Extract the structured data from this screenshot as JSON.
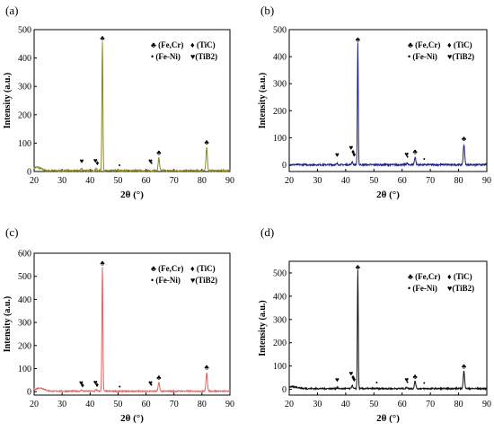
{
  "chart_data": [
    {
      "type": "line",
      "panel_label": "(a)",
      "color": "#8a8a1e",
      "xlabel": "2θ (°)",
      "ylabel": "Intensity (a.u.)",
      "xlim": [
        20,
        90
      ],
      "ylim": [
        0,
        500
      ],
      "xticks": [
        "20",
        "30",
        "40",
        "50",
        "60",
        "70",
        "80",
        "90"
      ],
      "yticks": [
        "0",
        "100",
        "200",
        "300",
        "400",
        "500"
      ],
      "legend": {
        "placement": "top-right",
        "items": [
          "♣ (Fe,Cr)",
          "♦ (TiC)",
          "• (Fe-Ni)",
          "♥(TiB2)"
        ]
      },
      "baseline": 3,
      "noise": 3,
      "hump": {
        "center": 21,
        "width": 2,
        "height": 12
      },
      "peaks": [
        {
          "x": 44.4,
          "y": 455,
          "w": 0.25
        },
        {
          "x": 64.6,
          "y": 45,
          "w": 0.35
        },
        {
          "x": 81.7,
          "y": 82,
          "w": 0.35
        },
        {
          "x": 37.0,
          "y": 6,
          "w": 0.3
        },
        {
          "x": 42.2,
          "y": 7,
          "w": 0.3
        }
      ],
      "markers": [
        {
          "x": 37.0,
          "y": 28,
          "symbol": "♥"
        },
        {
          "x": 41.9,
          "y": 30,
          "symbol": "♥"
        },
        {
          "x": 42.6,
          "y": 22,
          "symbol": "♦"
        },
        {
          "x": 44.4,
          "y": 462,
          "symbol": "♣"
        },
        {
          "x": 50.5,
          "y": 12,
          "symbol": "•"
        },
        {
          "x": 61.6,
          "y": 28,
          "symbol": "♥"
        },
        {
          "x": 62.0,
          "y": 20,
          "symbol": "•"
        },
        {
          "x": 64.6,
          "y": 58,
          "symbol": "♣"
        },
        {
          "x": 81.7,
          "y": 95,
          "symbol": "♣"
        }
      ]
    },
    {
      "type": "line",
      "panel_label": "(b)",
      "color": "#1a1f8c",
      "xlabel": "2θ (°)",
      "ylabel": "Intensity (a.u.)",
      "xlim": [
        20,
        90
      ],
      "ylim": [
        -25,
        500
      ],
      "xticks": [
        "20",
        "30",
        "40",
        "50",
        "60",
        "70",
        "80",
        "90"
      ],
      "yticks": [
        "0",
        "100",
        "200",
        "300",
        "400",
        "500"
      ],
      "legend": {
        "placement": "top-right",
        "items": [
          "♣ (Fe,Cr)",
          "♦ (TiC)",
          "• (Fe-Ni)",
          "♥(TiB2)"
        ]
      },
      "baseline": 0,
      "noise": 3,
      "peaks": [
        {
          "x": 44.3,
          "y": 450,
          "w": 0.22
        },
        {
          "x": 64.6,
          "y": 28,
          "w": 0.35
        },
        {
          "x": 81.9,
          "y": 75,
          "w": 0.35
        },
        {
          "x": 37.0,
          "y": 4,
          "w": 0.3
        },
        {
          "x": 42.3,
          "y": 12,
          "w": 0.3
        },
        {
          "x": 61.7,
          "y": 6,
          "w": 0.3
        }
      ],
      "markers": [
        {
          "x": 37.0,
          "y": 28,
          "symbol": "♥"
        },
        {
          "x": 41.9,
          "y": 55,
          "symbol": "♥"
        },
        {
          "x": 42.6,
          "y": 40,
          "symbol": "♦"
        },
        {
          "x": 43.0,
          "y": 30,
          "symbol": "♦"
        },
        {
          "x": 44.3,
          "y": 455,
          "symbol": "♣"
        },
        {
          "x": 61.6,
          "y": 30,
          "symbol": "♥"
        },
        {
          "x": 61.9,
          "y": 20,
          "symbol": "•"
        },
        {
          "x": 64.6,
          "y": 40,
          "symbol": "♣"
        },
        {
          "x": 67.8,
          "y": 12,
          "symbol": "•"
        },
        {
          "x": 81.9,
          "y": 88,
          "symbol": "♣"
        }
      ]
    },
    {
      "type": "line",
      "panel_label": "(c)",
      "color": "#e8605e",
      "xlabel": "2θ (°)",
      "ylabel": "Intensity (a.u.)",
      "xlim": [
        20,
        90
      ],
      "ylim": [
        -15,
        600
      ],
      "xticks": [
        "20",
        "30",
        "40",
        "50",
        "60",
        "70",
        "80",
        "90"
      ],
      "yticks": [
        "0",
        "100",
        "200",
        "300",
        "400",
        "500",
        "600"
      ],
      "legend": {
        "placement": "top-right",
        "items": [
          "♣ (Fe,Cr)",
          "♦ (TiC)",
          "• (Fe-Ni)",
          "♥(TiB2)"
        ]
      },
      "baseline": 2,
      "noise": 2.5,
      "hump": {
        "center": 22,
        "width": 2.2,
        "height": 14
      },
      "peaks": [
        {
          "x": 44.4,
          "y": 540,
          "w": 0.25
        },
        {
          "x": 64.6,
          "y": 38,
          "w": 0.35
        },
        {
          "x": 81.7,
          "y": 82,
          "w": 0.35
        },
        {
          "x": 37.0,
          "y": 6,
          "w": 0.3
        },
        {
          "x": 42.2,
          "y": 8,
          "w": 0.3
        }
      ],
      "markers": [
        {
          "x": 36.8,
          "y": 28,
          "symbol": "♥"
        },
        {
          "x": 37.3,
          "y": 18,
          "symbol": "♦"
        },
        {
          "x": 41.9,
          "y": 30,
          "symbol": "♥"
        },
        {
          "x": 42.5,
          "y": 20,
          "symbol": "♦"
        },
        {
          "x": 44.4,
          "y": 548,
          "symbol": "♣"
        },
        {
          "x": 50.6,
          "y": 10,
          "symbol": "•"
        },
        {
          "x": 61.6,
          "y": 28,
          "symbol": "♥"
        },
        {
          "x": 61.9,
          "y": 18,
          "symbol": "•"
        },
        {
          "x": 64.6,
          "y": 52,
          "symbol": "♣"
        },
        {
          "x": 81.7,
          "y": 95,
          "symbol": "♣"
        }
      ]
    },
    {
      "type": "line",
      "panel_label": "(d)",
      "color": "#111111",
      "xlabel": "2θ (°)",
      "ylabel": "Intensity (a.u.)",
      "xlim": [
        20,
        90
      ],
      "ylim": [
        -25,
        550
      ],
      "xticks": [
        "20",
        "30",
        "40",
        "50",
        "60",
        "70",
        "80",
        "90"
      ],
      "yticks": [
        "0",
        "100",
        "200",
        "300",
        "400",
        "500"
      ],
      "legend": {
        "placement": "top-right",
        "items": [
          "♣ (Fe,Cr)",
          "♦ (TiC)",
          "• (Fe-Ni)",
          "♥(TiB2)"
        ]
      },
      "baseline": 3,
      "noise": 3,
      "hump": {
        "center": 21,
        "width": 3,
        "height": 8
      },
      "peaks": [
        {
          "x": 44.3,
          "y": 510,
          "w": 0.22
        },
        {
          "x": 64.6,
          "y": 32,
          "w": 0.35
        },
        {
          "x": 81.9,
          "y": 75,
          "w": 0.35
        },
        {
          "x": 37.0,
          "y": 5,
          "w": 0.3
        },
        {
          "x": 42.3,
          "y": 15,
          "w": 0.3
        },
        {
          "x": 61.7,
          "y": 6,
          "w": 0.3
        }
      ],
      "markers": [
        {
          "x": 37.0,
          "y": 30,
          "symbol": "♥"
        },
        {
          "x": 41.9,
          "y": 58,
          "symbol": "♥"
        },
        {
          "x": 42.6,
          "y": 42,
          "symbol": "♦"
        },
        {
          "x": 43.0,
          "y": 32,
          "symbol": "♦"
        },
        {
          "x": 44.3,
          "y": 515,
          "symbol": "♣"
        },
        {
          "x": 51.0,
          "y": 18,
          "symbol": "•"
        },
        {
          "x": 61.6,
          "y": 30,
          "symbol": "♥"
        },
        {
          "x": 61.9,
          "y": 20,
          "symbol": "•"
        },
        {
          "x": 64.6,
          "y": 45,
          "symbol": "♣"
        },
        {
          "x": 67.8,
          "y": 15,
          "symbol": "•"
        },
        {
          "x": 81.9,
          "y": 88,
          "symbol": "♣"
        }
      ]
    }
  ]
}
